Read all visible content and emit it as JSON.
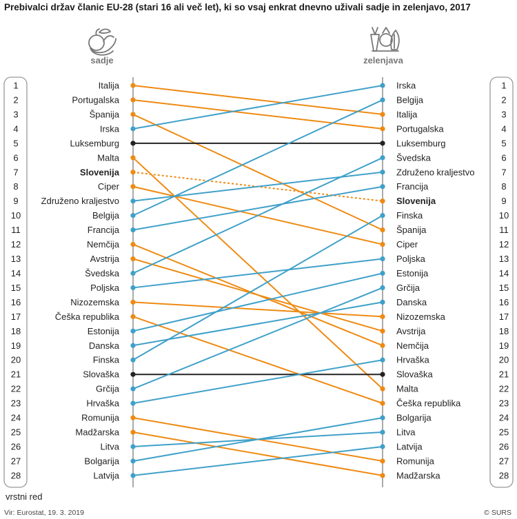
{
  "title": "Prebivalci držav članic EU-28 (stari 16 ali več let), ki so vsaj enkrat dnevno uživali sadje in zelenjavo, 2017",
  "source": "Vir: Eurostat, 19. 3. 2019",
  "copyright": "© SURS",
  "rank_label": "vrstni red",
  "colors": {
    "increase": "#3fa0c9",
    "decrease": "#ee8a12",
    "same": "#222222",
    "axis": "#aaaaaa"
  },
  "chart_data": {
    "type": "slope",
    "left_header": "sadje",
    "right_header": "zelenjava",
    "left_icon": "fruit-icon",
    "right_icon": "vegetable-icon",
    "ranks": [
      "1",
      "2",
      "3",
      "4",
      "5",
      "6",
      "7",
      "8",
      "9",
      "10",
      "11",
      "12",
      "13",
      "14",
      "15",
      "16",
      "17",
      "18",
      "19",
      "20",
      "21",
      "22",
      "23",
      "24",
      "25",
      "26",
      "27",
      "28"
    ],
    "left": [
      "Italija",
      "Portugalska",
      "Španija",
      "Irska",
      "Luksemburg",
      "Malta",
      "Slovenija",
      "Ciper",
      "Združeno kraljestvo",
      "Belgija",
      "Francija",
      "Nemčija",
      "Avstrija",
      "Švedska",
      "Poljska",
      "Nizozemska",
      "Češka republika",
      "Estonija",
      "Danska",
      "Finska",
      "Slovaška",
      "Grčija",
      "Hrvaška",
      "Romunija",
      "Madžarska",
      "Litva",
      "Bolgarija",
      "Latvija"
    ],
    "right": [
      "Irska",
      "Belgija",
      "Italija",
      "Portugalska",
      "Luksemburg",
      "Švedska",
      "Združeno kraljestvo",
      "Francija",
      "Slovenija",
      "Finska",
      "Španija",
      "Ciper",
      "Poljska",
      "Estonija",
      "Grčija",
      "Danska",
      "Nizozemska",
      "Avstrija",
      "Nemčija",
      "Hrvaška",
      "Slovaška",
      "Malta",
      "Češka republika",
      "Bolgarija",
      "Litva",
      "Latvija",
      "Romunija",
      "Madžarska"
    ],
    "highlight": "Slovenija"
  }
}
